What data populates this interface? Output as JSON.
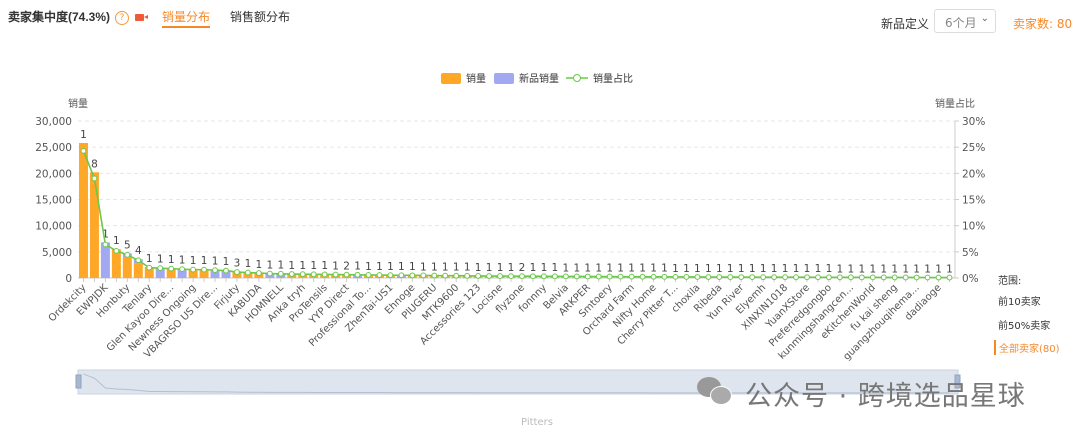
{
  "header": {
    "title": "卖家集中度(74.3%)",
    "help_glyph": "?",
    "tabs": [
      {
        "label": "销量分布",
        "active": true
      },
      {
        "label": "销售额分布",
        "active": false
      }
    ],
    "new_def_label": "新品定义",
    "new_def_value": "6个月",
    "seller_count": "卖家数: 80"
  },
  "range": {
    "label": "范围:",
    "options": [
      "前10卖家",
      "前50%卖家",
      "全部卖家(80)"
    ],
    "active": 2
  },
  "slider": {
    "label": "Pitters"
  },
  "watermark": "公众号 · 跨境选品星球",
  "colors": {
    "sales": "#ffa726",
    "new_sales": "#a3a9f0",
    "ratio": "#6cc84a"
  },
  "chart_data": {
    "type": "bar",
    "legend": [
      "销量",
      "新品销量",
      "销量占比"
    ],
    "legend_position": "top-center",
    "ylabel": "销量",
    "y2label": "销量占比",
    "ylim": [
      0,
      30000
    ],
    "yticks": [
      "0",
      "5,000",
      "10,000",
      "15,000",
      "20,000",
      "25,000",
      "30,000"
    ],
    "y2lim": [
      0,
      30
    ],
    "y2ticks": [
      "0%",
      "5%",
      "10%",
      "15%",
      "20%",
      "25%",
      "30%"
    ],
    "categories": [
      "Ordekcity",
      "",
      "EWPJDK",
      "",
      "Honbuty",
      "",
      "Tenlary",
      "",
      "Glen Kayoo Dire...",
      "",
      "Newness Ongoing",
      "",
      "VBAGRSO US Dire...",
      "",
      "Firjuty",
      "",
      "KABUDA",
      "",
      "HOMNELL",
      "",
      "Anka tryh",
      "",
      "ProTensils",
      "",
      "YYP Direct",
      "",
      "Professional To...",
      "",
      "ZhenTai-US1",
      "",
      "Ehnoge",
      "",
      "PIUGERU",
      "",
      "MTK9600",
      "",
      "Accessories 123",
      "",
      "Locisne",
      "",
      "flyzone",
      "",
      "fonnny",
      "",
      "Belvia",
      "",
      "ARKPER",
      "",
      "Smtoery",
      "",
      "Orchard Farm",
      "",
      "Nifty Home",
      "",
      "Cherry Pitter T...",
      "",
      "choxila",
      "",
      "Ribeda",
      "",
      "Yun River",
      "",
      "Elyemh",
      "",
      "XINXIN1018",
      "",
      "YuanXStore",
      "",
      "Preferredgongbo",
      "",
      "kunmingshangcen...",
      "",
      "eKitchenWorld",
      "",
      "fu kai sheng",
      "",
      "guangzhouqihema...",
      "",
      "dadiaoge",
      ""
    ],
    "sales": [
      25800,
      20200,
      6800,
      5500,
      4700,
      3600,
      2100,
      2000,
      1900,
      1800,
      1700,
      1700,
      1600,
      1500,
      1200,
      1100,
      1000,
      900,
      850,
      800,
      780,
      750,
      720,
      700,
      680,
      650,
      620,
      600,
      580,
      560,
      540,
      520,
      500,
      480,
      460,
      440,
      420,
      400,
      390,
      380,
      370,
      360,
      350,
      340,
      330,
      320,
      310,
      300,
      290,
      280,
      270,
      260,
      250,
      240,
      230,
      220,
      210,
      200,
      195,
      190,
      185,
      180,
      175,
      170,
      165,
      160,
      155,
      150,
      145,
      140,
      135,
      130,
      125,
      120,
      115,
      110,
      105,
      100,
      95,
      90
    ],
    "new_sales": [
      0,
      0,
      6800,
      0,
      700,
      900,
      0,
      2000,
      0,
      1800,
      0,
      0,
      1600,
      1500,
      0,
      0,
      0,
      900,
      850,
      0,
      0,
      0,
      0,
      0,
      0,
      700,
      0,
      0,
      0,
      560,
      0,
      0,
      0,
      0,
      0,
      0,
      0,
      0,
      390,
      0,
      0,
      0,
      0,
      0,
      0,
      0,
      0,
      0,
      0,
      0,
      0,
      0,
      0,
      0,
      0,
      0,
      0,
      0,
      0,
      0,
      0,
      0,
      0,
      0,
      0,
      0,
      0,
      0,
      0,
      0,
      0,
      0,
      0,
      0,
      0,
      0,
      0,
      0,
      0,
      0
    ],
    "data_labels": [
      "1",
      "8",
      "1",
      "1",
      "5",
      "4",
      "1",
      "1",
      "1",
      "1",
      "1",
      "1",
      "1",
      "1",
      "3",
      "1",
      "1",
      "1",
      "1",
      "1",
      "1",
      "1",
      "1",
      "1",
      "2",
      "1",
      "1",
      "1",
      "1",
      "1",
      "1",
      "1",
      "1",
      "1",
      "1",
      "1",
      "1",
      "1",
      "1",
      "1",
      "2",
      "1",
      "1",
      "1",
      "1",
      "1",
      "1",
      "1",
      "1",
      "1",
      "1",
      "1",
      "1",
      "1",
      "1",
      "1",
      "1",
      "1",
      "1",
      "1",
      "1",
      "1",
      "1",
      "1",
      "1",
      "1",
      "1",
      "1",
      "1",
      "1",
      "1",
      "1",
      "1",
      "1",
      "1",
      "1",
      "1",
      "1",
      "1",
      "1"
    ]
  }
}
